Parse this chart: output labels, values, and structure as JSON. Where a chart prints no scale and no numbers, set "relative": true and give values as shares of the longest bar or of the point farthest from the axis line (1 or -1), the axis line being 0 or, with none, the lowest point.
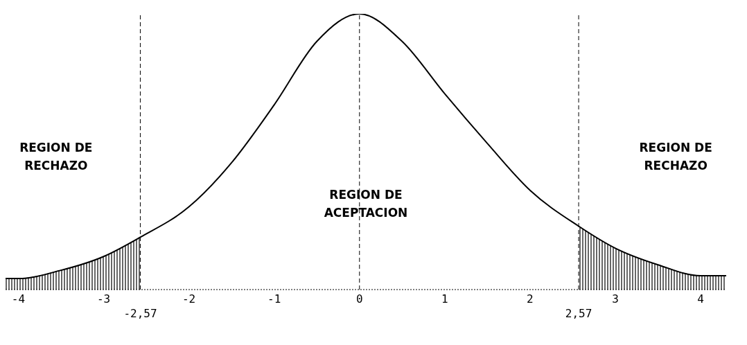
{
  "chart_data": {
    "type": "line",
    "relative": true,
    "grid": false,
    "marker": "none",
    "xlim": [
      -4.15,
      4.3
    ],
    "xticks": [
      -4,
      -3,
      -2,
      -1,
      0,
      1,
      2,
      3,
      4
    ],
    "series": [
      {
        "color": "#000000",
        "x": [
          -4.15,
          -4,
          -3.5,
          -3,
          -2.57,
          -2,
          -1.5,
          -1,
          -0.5,
          0,
          0.5,
          1,
          1.5,
          2,
          2.57,
          3,
          3.5,
          4,
          4.3
        ],
        "values": [
          0.04,
          0.04,
          0.07,
          0.12,
          0.19,
          0.3,
          0.46,
          0.67,
          0.9,
          1,
          0.9,
          0.71,
          0.53,
          0.36,
          0.23,
          0.15,
          0.09,
          0.05,
          0.05
        ]
      },
      {
        "type": "area",
        "color": "#000000",
        "x": [
          -4.15,
          -4,
          -3.5,
          -3,
          -2.57
        ],
        "values": [
          0.04,
          0.04,
          0.07,
          0.12,
          0.19
        ]
      },
      {
        "type": "area",
        "color": "#000000",
        "x": [
          2.57,
          3,
          3.5,
          4,
          4.3
        ],
        "values": [
          0.23,
          0.15,
          0.09,
          0.05,
          0.05
        ]
      }
    ],
    "ref_lines": [
      {
        "axis": "x",
        "value": -2.57,
        "label": "-2,57",
        "line_style": "dashed"
      },
      {
        "axis": "x",
        "value": 0,
        "line_style": "dashed"
      },
      {
        "axis": "x",
        "value": 2.57,
        "label": "2,57",
        "line_style": "dashed"
      }
    ],
    "annotations": [
      "REGION DE RECHAZO",
      "REGION DE ACEPTACION",
      "REGION DE RECHAZO"
    ]
  }
}
